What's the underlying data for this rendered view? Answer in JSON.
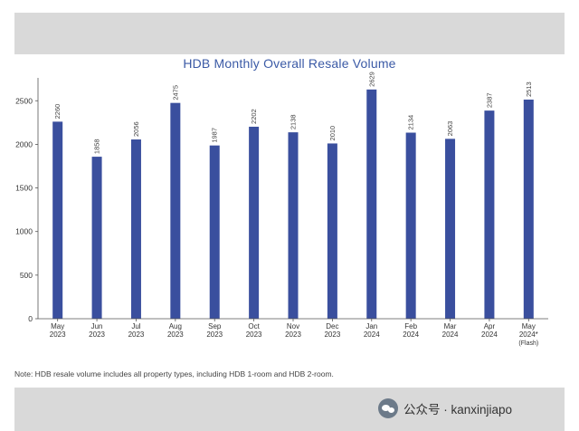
{
  "chart_data": {
    "type": "bar",
    "title": "HDB Monthly Overall Resale Volume",
    "categories": [
      [
        "May",
        "2023"
      ],
      [
        "Jun",
        "2023"
      ],
      [
        "Jul",
        "2023"
      ],
      [
        "Aug",
        "2023"
      ],
      [
        "Sep",
        "2023"
      ],
      [
        "Oct",
        "2023"
      ],
      [
        "Nov",
        "2023"
      ],
      [
        "Dec",
        "2023"
      ],
      [
        "Jan",
        "2024"
      ],
      [
        "Feb",
        "2024"
      ],
      [
        "Mar",
        "2024"
      ],
      [
        "Apr",
        "2024"
      ],
      [
        "May",
        "2024*",
        "(Flash)"
      ]
    ],
    "values": [
      2260,
      1858,
      2056,
      2475,
      1987,
      2202,
      2138,
      2010,
      2629,
      2134,
      2063,
      2387,
      2513
    ],
    "ylim": [
      0,
      2700
    ],
    "yticks": [
      0,
      500,
      1000,
      1500,
      2000,
      2500
    ],
    "xlabel": "",
    "ylabel": "",
    "grid": false,
    "bar_color": "#3a4f9e"
  },
  "note": "Note: HDB resale volume includes all property types, including HDB 1-room and HDB 2-room.",
  "watermark": {
    "text": "公众号 · kanxinjiapo",
    "icon": "wechat-icon"
  }
}
